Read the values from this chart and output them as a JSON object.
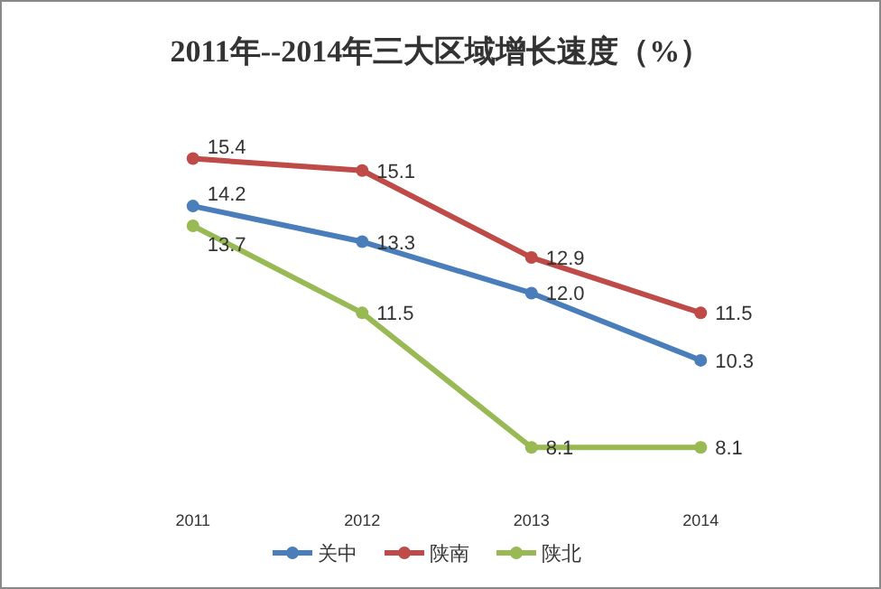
{
  "chart_data": {
    "type": "line",
    "title": "2011年--2014年三大区域增长速度（%）",
    "categories": [
      "2011",
      "2012",
      "2013",
      "2014"
    ],
    "series": [
      {
        "name": "关中",
        "color": "#4a7ebb",
        "values": [
          14.2,
          13.3,
          12.0,
          10.3
        ],
        "value_labels": [
          "14.2",
          "13.3",
          "12.0",
          "10.3"
        ]
      },
      {
        "name": "陕南",
        "color": "#be4b48",
        "values": [
          15.4,
          15.1,
          12.9,
          11.5
        ],
        "value_labels": [
          "15.4",
          "15.1",
          "12.9",
          "11.5"
        ]
      },
      {
        "name": "陕北",
        "color": "#98b954",
        "values": [
          13.7,
          11.5,
          8.1,
          8.1
        ],
        "value_labels": [
          "13.7",
          "11.5",
          "8.1",
          "8.1"
        ]
      }
    ],
    "marker": "circle",
    "line_style": "solid",
    "legend": "bottom",
    "grid": false
  }
}
